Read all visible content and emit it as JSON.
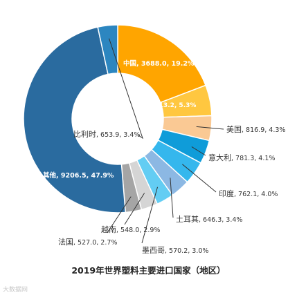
{
  "chart_data": {
    "type": "pie",
    "donut": true,
    "title": "2019年世界塑料主要进口国家（地区）",
    "categories": [
      "中国",
      "德国",
      "美国",
      "意大利",
      "印度",
      "土耳其",
      "墨西哥",
      "越南",
      "法国",
      "其他",
      "比利时"
    ],
    "values": [
      3688.0,
      1013.2,
      816.9,
      781.3,
      762.1,
      646.3,
      570.2,
      548.0,
      527.0,
      9206.5,
      653.9
    ],
    "percents": [
      19.2,
      5.3,
      4.3,
      4.1,
      4.0,
      3.4,
      3.0,
      2.9,
      2.7,
      47.9,
      3.4
    ],
    "colors": [
      "#FFA500",
      "#FFC740",
      "#FAC994",
      "#0F9CD9",
      "#35B7ED",
      "#8CB8E3",
      "#63CDF3",
      "#D5D5D5",
      "#A5A5A5",
      "#2A6B9F",
      "#2C86C0"
    ],
    "labels": [
      "中国, 3688.0, 19.2%",
      "德国, 1013.2, 5.3%",
      "美国, 816.9, 4.3%",
      "意大利, 781.3, 4.1%",
      "印度, 762.1, 4.0%",
      "土耳其, 646.3, 3.4%",
      "墨西哥, 570.2, 3.0%",
      "越南, 548.0, 2.9%",
      "法国, 527.0, 2.7%",
      "其他, 9206.5, 47.9%",
      "比利时, 653.9, 3.4%"
    ]
  },
  "watermark": "大数据网"
}
